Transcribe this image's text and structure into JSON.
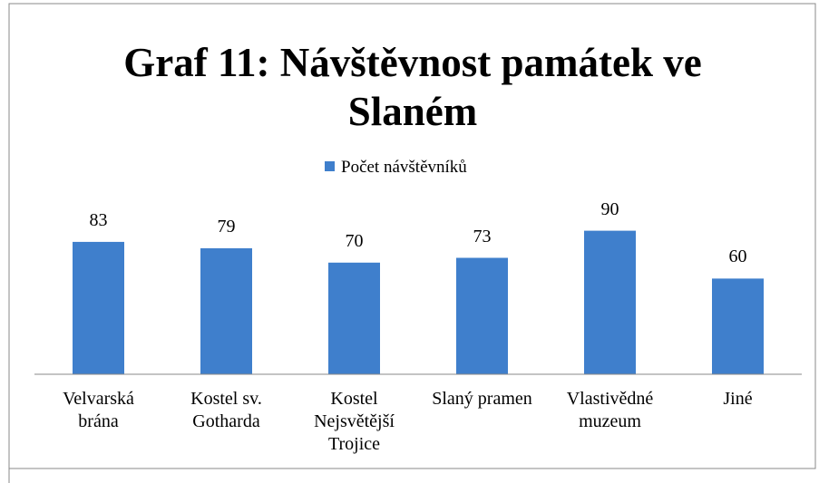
{
  "chart_data": {
    "type": "bar",
    "title": "Graf 11: Návštěvnost památek ve Slaném",
    "categories": [
      "Velvarská brána",
      "Kostel sv. Gotharda",
      "Kostel Nejsvětější Trojice",
      "Slaný pramen",
      "Vlastivědné muzeum",
      "Jiné"
    ],
    "series": [
      {
        "name": "Počet  návštěvníků",
        "color": "#3f7fcc",
        "values": [
          83,
          79,
          70,
          73,
          90,
          60
        ]
      }
    ],
    "ylim": [
      0,
      100
    ],
    "legend": "top"
  }
}
